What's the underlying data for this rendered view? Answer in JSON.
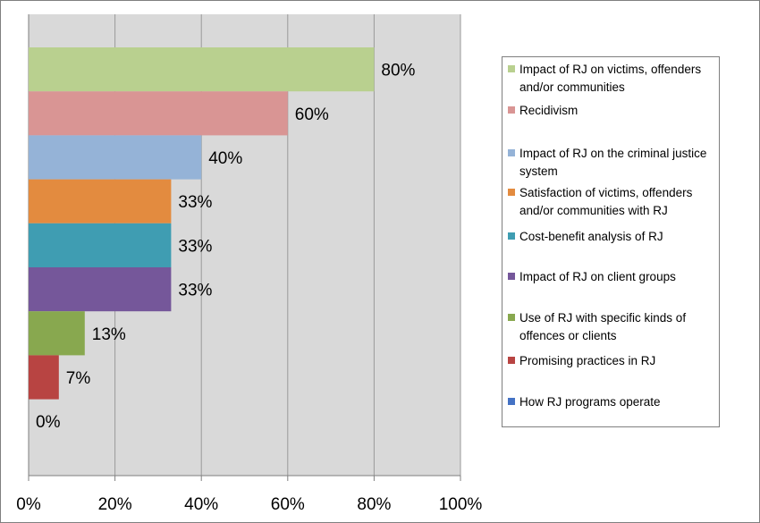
{
  "chart_data": {
    "type": "bar",
    "orientation": "horizontal",
    "categories": [
      "Impact of RJ on victims, offenders and/or communities",
      "Recidivism",
      "Impact of RJ on the criminal justice system",
      "Satisfaction of victims, offenders and/or communities with RJ",
      "Cost-benefit analysis of RJ",
      "Impact of RJ on client groups",
      "Use of RJ with specific kinds of offences or clients",
      "Promising practices in RJ",
      "How RJ programs operate"
    ],
    "values": [
      80,
      60,
      40,
      33,
      33,
      33,
      13,
      7,
      0
    ],
    "data_labels": [
      "80%",
      "60%",
      "40%",
      "33%",
      "33%",
      "33%",
      "13%",
      "7%",
      "0%"
    ],
    "colors": [
      "#b9d08f",
      "#d99594",
      "#95b3d7",
      "#e38b3f",
      "#3f9db2",
      "#75579a",
      "#88a84f",
      "#b84442",
      "#4472c4"
    ],
    "xlim": [
      0,
      100
    ],
    "x_ticks": [
      "0%",
      "20%",
      "40%",
      "60%",
      "80%",
      "100%"
    ],
    "title": "",
    "xlabel": "",
    "ylabel": "",
    "grid": true,
    "legend_position": "right",
    "plot_background": "#d9d9d9"
  }
}
